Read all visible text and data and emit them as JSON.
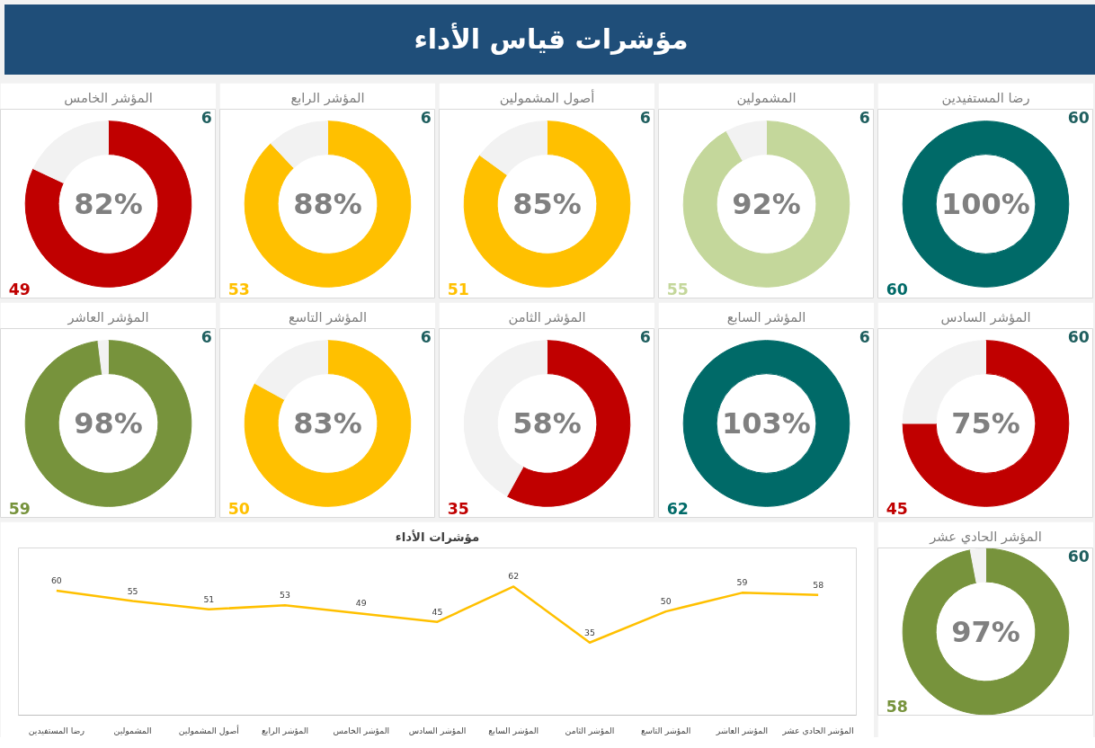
{
  "chart_data": [
    {
      "type": "other",
      "title": "مؤشرات قياس الأداء"
    },
    {
      "type": "pie",
      "title": "رضا المستفيدين",
      "categories": [
        null,
        null
      ],
      "values": [
        100,
        0
      ],
      "colors": [
        "#006a68",
        "#f2f2f2"
      ],
      "annotations": [
        "100%",
        "60",
        "60"
      ]
    },
    {
      "type": "donut",
      "title": "المشمولين",
      "categories": [
        null,
        null
      ],
      "values": [
        92,
        8
      ],
      "colors": [
        "#c4d79b",
        "#f2f2f2"
      ],
      "annotations": [
        "92%",
        "6",
        "55"
      ]
    },
    {
      "type": "donut",
      "title": "أصول المشمولين",
      "categories": [
        null,
        null
      ],
      "values": [
        85,
        15
      ],
      "colors": [
        "#ffc000",
        "#f2f2f2"
      ],
      "annotations": [
        "85%",
        "6",
        "51"
      ]
    },
    {
      "type": "donut",
      "title": "المؤشر الرابع",
      "categories": [
        null,
        null
      ],
      "values": [
        88,
        12
      ],
      "colors": [
        "#ffc000",
        "#f2f2f2"
      ],
      "annotations": [
        "88%",
        "6",
        "53"
      ]
    },
    {
      "type": "donut",
      "title": "المؤشر الخامس",
      "categories": [
        null,
        null
      ],
      "values": [
        82,
        18
      ],
      "colors": [
        "#c00000",
        "#f2f2f2"
      ],
      "annotations": [
        "82%",
        "6",
        "49"
      ]
    },
    {
      "type": "donut",
      "title": "المؤشر السادس",
      "categories": [
        null,
        null
      ],
      "values": [
        75,
        25
      ],
      "colors": [
        "#c00000",
        "#f2f2f2"
      ],
      "annotations": [
        "75%",
        "60",
        "45"
      ]
    },
    {
      "type": "pie",
      "title": "المؤشر السابع",
      "categories": [
        null,
        null
      ],
      "values": [
        100,
        0
      ],
      "colors": [
        "#006a68",
        "#f2f2f2"
      ],
      "annotations": [
        "103%",
        "6",
        "62"
      ]
    },
    {
      "type": "donut",
      "title": "المؤشر الثامن",
      "categories": [
        null,
        null
      ],
      "values": [
        58,
        42
      ],
      "colors": [
        "#c00000",
        "#f2f2f2"
      ],
      "annotations": [
        "58%",
        "6",
        "35"
      ]
    },
    {
      "type": "donut",
      "title": "المؤشر التاسع",
      "categories": [
        null,
        null
      ],
      "values": [
        83,
        17
      ],
      "colors": [
        "#ffc000",
        "#f2f2f2"
      ],
      "annotations": [
        "83%",
        "6",
        "50"
      ]
    },
    {
      "type": "donut",
      "title": "المؤشر العاشر",
      "categories": [
        null,
        null
      ],
      "values": [
        98,
        2
      ],
      "colors": [
        "#77933c",
        "#f2f2f2"
      ],
      "annotations": [
        "98%",
        "6",
        "59"
      ]
    },
    {
      "type": "donut",
      "title": "المؤشر الحادي عشر",
      "categories": [
        null,
        null
      ],
      "values": [
        97,
        3
      ],
      "colors": [
        "#77933c",
        "#f2f2f2"
      ],
      "annotations": [
        "97%",
        "60",
        "58"
      ]
    },
    {
      "type": "line",
      "title": "مؤشرات الأداء",
      "categories": [
        "رضا المستفيدين",
        "المشمولين",
        "أصول المشمولين",
        "المؤشر الرابع",
        "المؤشر الخامس",
        "المؤشر السادس",
        "المؤشر السابع",
        "المؤشر الثامن",
        "المؤشر التاسع",
        "المؤشر العاشر",
        "المؤشر الحادي عشر"
      ],
      "series": [
        {
          "color": "#ffc000",
          "values": [
            60,
            55,
            51,
            53,
            49,
            45,
            62,
            35,
            50,
            59,
            58
          ]
        }
      ],
      "data_labels": true,
      "tick_labels": "x"
    }
  ]
}
